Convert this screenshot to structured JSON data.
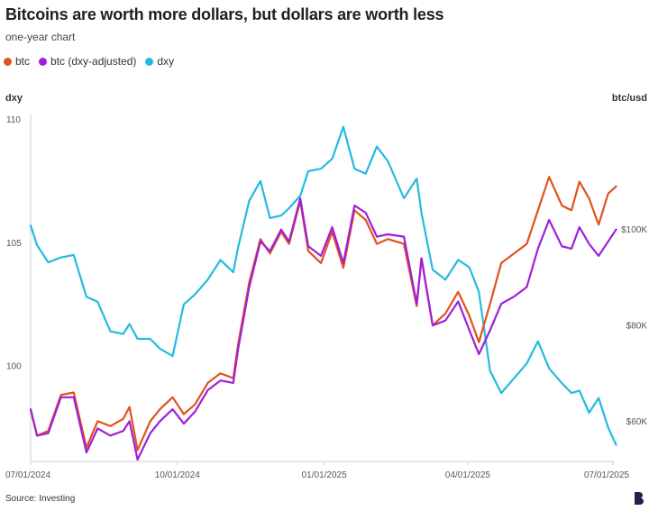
{
  "title": "Bitcoins are worth more dollars, but dollars are worth less",
  "subtitle": "one-year chart",
  "source": "Source: Investing",
  "colors": {
    "btc": "#e0521e",
    "btc_adj": "#a01fd6",
    "dxy": "#23bbe0"
  },
  "legend": [
    {
      "label": "btc",
      "color": "#e0521e"
    },
    {
      "label": "btc (dxy-adjusted)",
      "color": "#a01fd6"
    },
    {
      "label": "dxy",
      "color": "#23bbe0"
    }
  ],
  "chart_data": {
    "type": "line",
    "y_left_label": "dxy",
    "y_right_label": "btc/usd",
    "y_left_ticks": [
      "110",
      "105",
      "100"
    ],
    "y_right_ticks": [
      "$100K",
      "$80K",
      "$60K"
    ],
    "x_ticks": [
      "07/01/2024",
      "10/01/2024",
      "01/01/2025",
      "04/01/2025",
      "07/01/2025"
    ],
    "ylim_left": [
      96.2,
      110.2
    ],
    "ylim_right": [
      52000,
      124000
    ],
    "grid": false,
    "legend_position": "top-left",
    "series": [
      {
        "name": "btc",
        "axis": "right",
        "color": "#e0521e",
        "points": [
          [
            "2024-07-01",
            62500
          ],
          [
            "2024-07-05",
            57000
          ],
          [
            "2024-07-12",
            58000
          ],
          [
            "2024-07-20",
            65500
          ],
          [
            "2024-07-28",
            66000
          ],
          [
            "2024-08-05",
            54500
          ],
          [
            "2024-08-12",
            60000
          ],
          [
            "2024-08-20",
            59000
          ],
          [
            "2024-08-28",
            60500
          ],
          [
            "2024-09-01",
            63000
          ],
          [
            "2024-09-06",
            54000
          ],
          [
            "2024-09-14",
            60000
          ],
          [
            "2024-09-20",
            62500
          ],
          [
            "2024-09-28",
            65000
          ],
          [
            "2024-10-05",
            61500
          ],
          [
            "2024-10-12",
            63500
          ],
          [
            "2024-10-20",
            68000
          ],
          [
            "2024-10-28",
            70000
          ],
          [
            "2024-11-05",
            69000
          ],
          [
            "2024-11-08",
            76000
          ],
          [
            "2024-11-15",
            89000
          ],
          [
            "2024-11-22",
            98000
          ],
          [
            "2024-11-28",
            95000
          ],
          [
            "2024-12-05",
            99500
          ],
          [
            "2024-12-10",
            97000
          ],
          [
            "2024-12-17",
            106000
          ],
          [
            "2024-12-22",
            95500
          ],
          [
            "2024-12-30",
            93000
          ],
          [
            "2025-01-06",
            99500
          ],
          [
            "2025-01-13",
            92000
          ],
          [
            "2025-01-20",
            104000
          ],
          [
            "2025-01-27",
            102000
          ],
          [
            "2025-02-03",
            97000
          ],
          [
            "2025-02-10",
            98000
          ],
          [
            "2025-02-20",
            97000
          ],
          [
            "2025-02-28",
            84000
          ],
          [
            "2025-03-03",
            94000
          ],
          [
            "2025-03-10",
            80000
          ],
          [
            "2025-03-18",
            82500
          ],
          [
            "2025-03-26",
            87000
          ],
          [
            "2025-04-02",
            82000
          ],
          [
            "2025-04-08",
            76500
          ],
          [
            "2025-04-15",
            84500
          ],
          [
            "2025-04-22",
            93000
          ],
          [
            "2025-04-30",
            95000
          ],
          [
            "2025-05-08",
            97000
          ],
          [
            "2025-05-15",
            104000
          ],
          [
            "2025-05-22",
            111000
          ],
          [
            "2025-05-30",
            105000
          ],
          [
            "2025-06-05",
            104000
          ],
          [
            "2025-06-10",
            110000
          ],
          [
            "2025-06-16",
            106500
          ],
          [
            "2025-06-22",
            101000
          ],
          [
            "2025-06-28",
            107500
          ],
          [
            "2025-07-03",
            109000
          ]
        ]
      },
      {
        "name": "btc (dxy-adjusted)",
        "axis": "right",
        "color": "#a01fd6",
        "points": [
          [
            "2024-07-01",
            62500
          ],
          [
            "2024-07-05",
            57000
          ],
          [
            "2024-07-12",
            57500
          ],
          [
            "2024-07-20",
            65000
          ],
          [
            "2024-07-28",
            65000
          ],
          [
            "2024-08-05",
            53500
          ],
          [
            "2024-08-12",
            58500
          ],
          [
            "2024-08-20",
            57000
          ],
          [
            "2024-08-28",
            58000
          ],
          [
            "2024-09-01",
            60000
          ],
          [
            "2024-09-06",
            52000
          ],
          [
            "2024-09-14",
            57500
          ],
          [
            "2024-09-20",
            60000
          ],
          [
            "2024-09-28",
            62500
          ],
          [
            "2024-10-05",
            59500
          ],
          [
            "2024-10-12",
            62000
          ],
          [
            "2024-10-20",
            66500
          ],
          [
            "2024-10-28",
            68500
          ],
          [
            "2024-11-05",
            68000
          ],
          [
            "2024-11-08",
            75000
          ],
          [
            "2024-11-15",
            88000
          ],
          [
            "2024-11-22",
            97500
          ],
          [
            "2024-11-28",
            95500
          ],
          [
            "2024-12-05",
            100000
          ],
          [
            "2024-12-10",
            97500
          ],
          [
            "2024-12-17",
            106500
          ],
          [
            "2024-12-22",
            96500
          ],
          [
            "2024-12-30",
            94500
          ],
          [
            "2025-01-06",
            100500
          ],
          [
            "2025-01-13",
            93000
          ],
          [
            "2025-01-20",
            105000
          ],
          [
            "2025-01-27",
            103500
          ],
          [
            "2025-02-03",
            98500
          ],
          [
            "2025-02-10",
            99000
          ],
          [
            "2025-02-20",
            98500
          ],
          [
            "2025-02-28",
            84500
          ],
          [
            "2025-03-03",
            94000
          ],
          [
            "2025-03-10",
            80000
          ],
          [
            "2025-03-18",
            81000
          ],
          [
            "2025-03-26",
            85000
          ],
          [
            "2025-04-02",
            79000
          ],
          [
            "2025-04-08",
            74000
          ],
          [
            "2025-04-15",
            79000
          ],
          [
            "2025-04-22",
            84500
          ],
          [
            "2025-04-30",
            86000
          ],
          [
            "2025-05-08",
            88000
          ],
          [
            "2025-05-15",
            96000
          ],
          [
            "2025-05-22",
            102000
          ],
          [
            "2025-05-30",
            96500
          ],
          [
            "2025-06-05",
            96000
          ],
          [
            "2025-06-10",
            100500
          ],
          [
            "2025-06-16",
            97000
          ],
          [
            "2025-06-22",
            94500
          ],
          [
            "2025-06-28",
            97500
          ],
          [
            "2025-07-03",
            100000
          ]
        ]
      },
      {
        "name": "dxy",
        "axis": "left",
        "color": "#23bbe0",
        "points": [
          [
            "2024-07-01",
            105.7
          ],
          [
            "2024-07-05",
            104.9
          ],
          [
            "2024-07-12",
            104.2
          ],
          [
            "2024-07-20",
            104.4
          ],
          [
            "2024-07-28",
            104.5
          ],
          [
            "2024-08-05",
            102.8
          ],
          [
            "2024-08-12",
            102.6
          ],
          [
            "2024-08-20",
            101.4
          ],
          [
            "2024-08-28",
            101.3
          ],
          [
            "2024-09-01",
            101.7
          ],
          [
            "2024-09-06",
            101.1
          ],
          [
            "2024-09-14",
            101.1
          ],
          [
            "2024-09-20",
            100.7
          ],
          [
            "2024-09-28",
            100.4
          ],
          [
            "2024-10-05",
            102.5
          ],
          [
            "2024-10-12",
            102.9
          ],
          [
            "2024-10-20",
            103.5
          ],
          [
            "2024-10-28",
            104.3
          ],
          [
            "2024-11-05",
            103.8
          ],
          [
            "2024-11-08",
            104.8
          ],
          [
            "2024-11-15",
            106.7
          ],
          [
            "2024-11-22",
            107.5
          ],
          [
            "2024-11-28",
            106.0
          ],
          [
            "2024-12-05",
            106.1
          ],
          [
            "2024-12-10",
            106.4
          ],
          [
            "2024-12-17",
            106.9
          ],
          [
            "2024-12-22",
            107.9
          ],
          [
            "2024-12-30",
            108.0
          ],
          [
            "2025-01-06",
            108.4
          ],
          [
            "2025-01-13",
            109.7
          ],
          [
            "2025-01-20",
            108.0
          ],
          [
            "2025-01-27",
            107.8
          ],
          [
            "2025-02-03",
            108.9
          ],
          [
            "2025-02-10",
            108.3
          ],
          [
            "2025-02-20",
            106.8
          ],
          [
            "2025-02-28",
            107.6
          ],
          [
            "2025-03-03",
            106.2
          ],
          [
            "2025-03-10",
            103.9
          ],
          [
            "2025-03-18",
            103.5
          ],
          [
            "2025-03-26",
            104.3
          ],
          [
            "2025-04-02",
            104.0
          ],
          [
            "2025-04-08",
            103.0
          ],
          [
            "2025-04-15",
            99.8
          ],
          [
            "2025-04-22",
            98.9
          ],
          [
            "2025-04-30",
            99.5
          ],
          [
            "2025-05-08",
            100.1
          ],
          [
            "2025-05-15",
            101.0
          ],
          [
            "2025-05-22",
            99.9
          ],
          [
            "2025-05-30",
            99.3
          ],
          [
            "2025-06-05",
            98.9
          ],
          [
            "2025-06-10",
            99.0
          ],
          [
            "2025-06-16",
            98.1
          ],
          [
            "2025-06-22",
            98.7
          ],
          [
            "2025-06-28",
            97.5
          ],
          [
            "2025-07-03",
            96.8
          ]
        ]
      }
    ]
  }
}
